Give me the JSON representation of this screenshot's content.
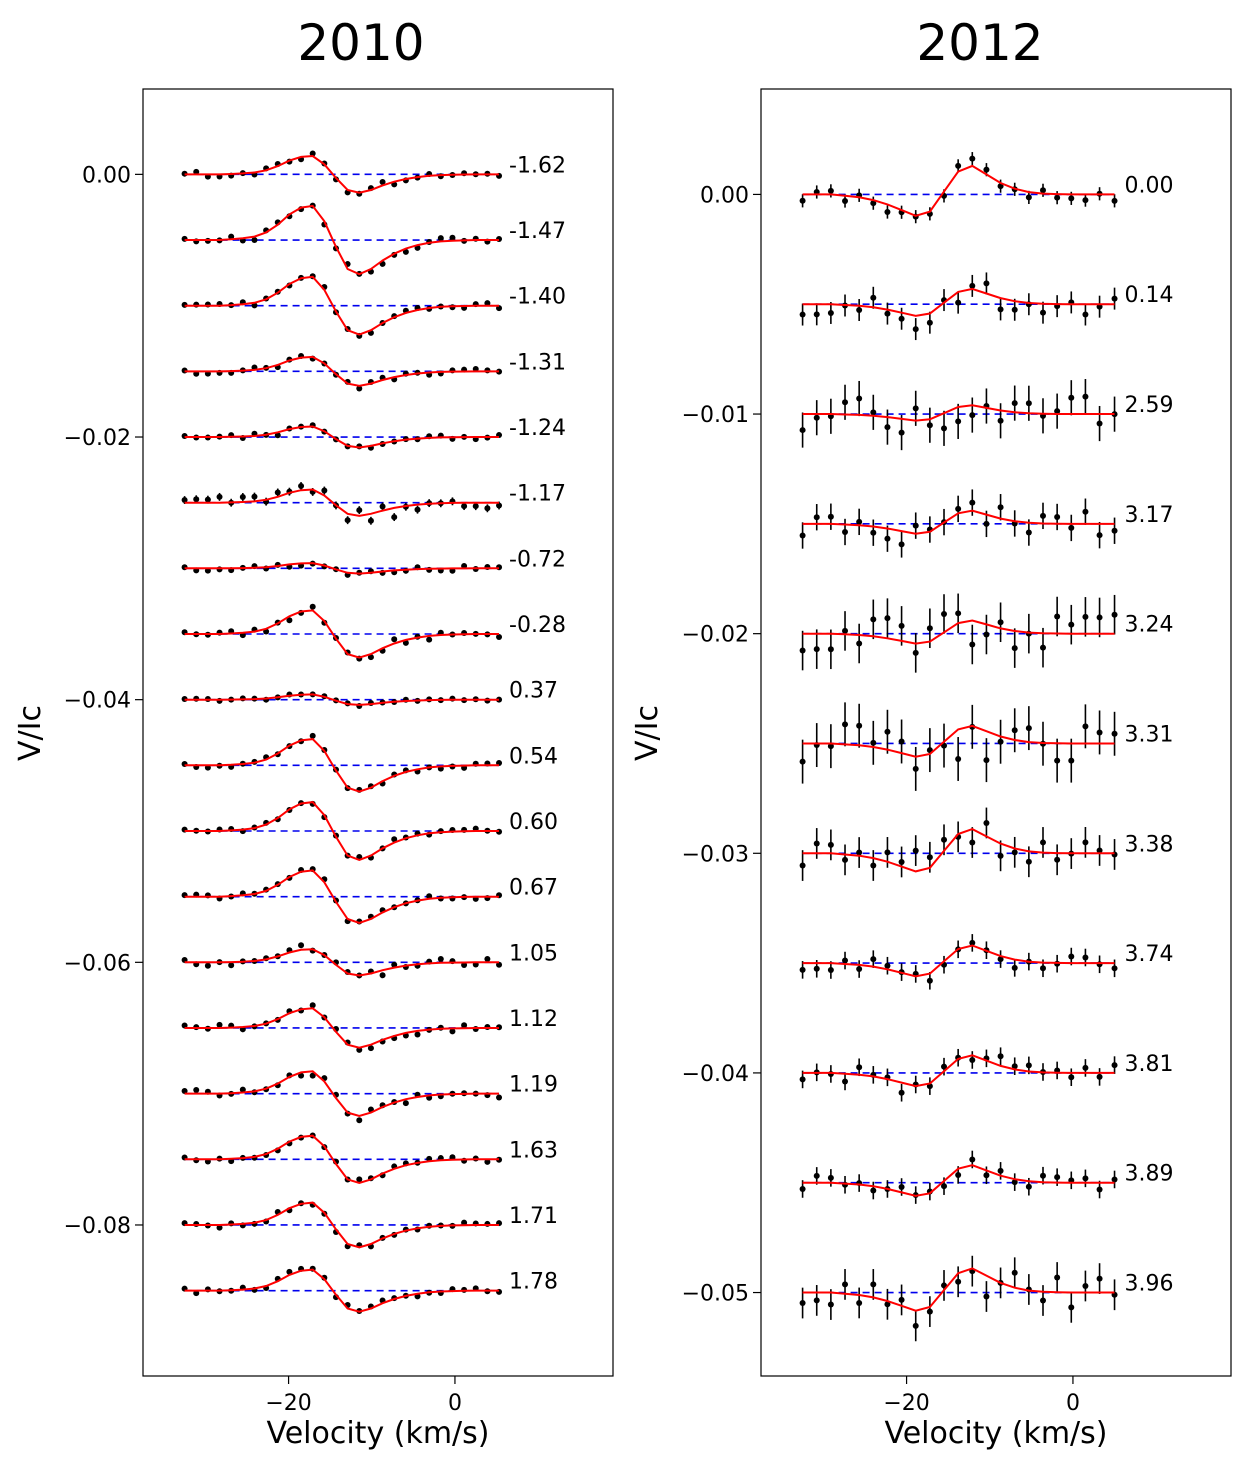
{
  "chart_data": [
    {
      "type": "line",
      "panel_title": "2010",
      "xlabel": "Velocity (km/s)",
      "ylabel": "V/Ic",
      "xlim": [
        -37.5,
        19
      ],
      "ylim": [
        -0.0915,
        0.0065
      ],
      "xticks": [
        -20,
        0
      ],
      "xtick_labels": [
        "−20",
        "0"
      ],
      "yticks": [
        0.0,
        -0.02,
        -0.04,
        -0.06,
        -0.08
      ],
      "ytick_labels": [
        "0.00",
        "−0.02",
        "−0.04",
        "−0.06",
        "−0.08"
      ],
      "offset_step": 0.005,
      "velocity": [
        -32.5,
        -31.1,
        -29.7,
        -28.3,
        -26.9,
        -25.5,
        -24.1,
        -22.7,
        -21.3,
        -19.9,
        -18.5,
        -17.1,
        -15.7,
        -14.3,
        -12.9,
        -11.5,
        -10.1,
        -8.7,
        -7.3,
        -5.9,
        -4.5,
        -3.1,
        -1.7,
        -0.3,
        1.1,
        2.5,
        3.9,
        5.3
      ],
      "model_shape": [
        0.0,
        0.0,
        0.0,
        0.0,
        0.02,
        0.05,
        0.1,
        0.22,
        0.45,
        0.75,
        0.95,
        1.0,
        0.55,
        -0.2,
        -0.85,
        -1.0,
        -0.85,
        -0.6,
        -0.4,
        -0.25,
        -0.15,
        -0.08,
        -0.04,
        -0.02,
        -0.01,
        0.0,
        0.0,
        0.0
      ],
      "series": [
        {
          "phase_label": "-1.62",
          "offset": 0.0,
          "model_amp": 0.0014,
          "noise": 0.0002
        },
        {
          "phase_label": "-1.47",
          "offset": -0.005,
          "model_amp": 0.0026,
          "noise": 0.0003
        },
        {
          "phase_label": "-1.40",
          "offset": -0.01,
          "model_amp": 0.0022,
          "noise": 0.0002
        },
        {
          "phase_label": "-1.31",
          "offset": -0.015,
          "model_amp": 0.0011,
          "noise": 0.0002
        },
        {
          "phase_label": "-1.24",
          "offset": -0.02,
          "model_amp": 0.0008,
          "noise": 0.0002
        },
        {
          "phase_label": "-1.17",
          "offset": -0.025,
          "model_amp": 0.001,
          "noise": 0.0005
        },
        {
          "phase_label": "-0.72",
          "offset": -0.03,
          "model_amp": 0.0004,
          "noise": 0.0002
        },
        {
          "phase_label": "-0.28",
          "offset": -0.035,
          "model_amp": 0.0018,
          "noise": 0.0003
        },
        {
          "phase_label": "0.37",
          "offset": -0.04,
          "model_amp": 0.0004,
          "noise": 0.0001
        },
        {
          "phase_label": "0.54",
          "offset": -0.045,
          "model_amp": 0.002,
          "noise": 0.0002
        },
        {
          "phase_label": "0.60",
          "offset": -0.05,
          "model_amp": 0.0022,
          "noise": 0.0002
        },
        {
          "phase_label": "0.67",
          "offset": -0.055,
          "model_amp": 0.002,
          "noise": 0.0002
        },
        {
          "phase_label": "1.05",
          "offset": -0.06,
          "model_amp": 0.001,
          "noise": 0.0003
        },
        {
          "phase_label": "1.12",
          "offset": -0.065,
          "model_amp": 0.0015,
          "noise": 0.0003
        },
        {
          "phase_label": "1.19",
          "offset": -0.07,
          "model_amp": 0.0017,
          "noise": 0.0003
        },
        {
          "phase_label": "1.63",
          "offset": -0.075,
          "model_amp": 0.0018,
          "noise": 0.0002
        },
        {
          "phase_label": "1.71",
          "offset": -0.08,
          "model_amp": 0.0017,
          "noise": 0.0002
        },
        {
          "phase_label": "1.78",
          "offset": -0.085,
          "model_amp": 0.0016,
          "noise": 0.0002
        }
      ]
    },
    {
      "type": "line",
      "panel_title": "2012",
      "xlabel": "Velocity (km/s)",
      "ylabel": "V/Ic",
      "xlim": [
        -37.5,
        19
      ],
      "ylim": [
        -0.0538,
        0.0048
      ],
      "xticks": [
        -20,
        0
      ],
      "xtick_labels": [
        "−20",
        "0"
      ],
      "yticks": [
        0.0,
        -0.01,
        -0.02,
        -0.03,
        -0.04,
        -0.05
      ],
      "ytick_labels": [
        "0.00",
        "−0.01",
        "−0.02",
        "−0.03",
        "−0.04",
        "−0.05"
      ],
      "offset_step": 0.005,
      "velocity": [
        -32.5,
        -30.8,
        -29.1,
        -27.4,
        -25.7,
        -24.0,
        -22.3,
        -20.6,
        -18.9,
        -17.2,
        -15.5,
        -13.8,
        -12.1,
        -10.4,
        -8.7,
        -7.0,
        -5.3,
        -3.6,
        -1.9,
        -0.2,
        1.5,
        3.2,
        5.0
      ],
      "model_shape": [
        0.0,
        0.0,
        0.0,
        -0.05,
        -0.1,
        -0.2,
        -0.35,
        -0.55,
        -0.75,
        -0.6,
        0.1,
        0.8,
        1.0,
        0.7,
        0.4,
        0.2,
        0.08,
        0.03,
        0.01,
        0.0,
        0.0,
        0.0,
        0.0
      ],
      "series": [
        {
          "phase_label": "0.00",
          "offset": 0.0,
          "model_amp": 0.0013,
          "noise": 0.0003
        },
        {
          "phase_label": "0.14",
          "offset": -0.005,
          "model_amp": 0.0007,
          "noise": 0.0005
        },
        {
          "phase_label": "2.59",
          "offset": -0.01,
          "model_amp": 0.0004,
          "noise": 0.0008
        },
        {
          "phase_label": "3.17",
          "offset": -0.015,
          "model_amp": 0.0006,
          "noise": 0.0006
        },
        {
          "phase_label": "3.24",
          "offset": -0.02,
          "model_amp": 0.0006,
          "noise": 0.0009
        },
        {
          "phase_label": "3.31",
          "offset": -0.025,
          "model_amp": 0.0008,
          "noise": 0.001
        },
        {
          "phase_label": "3.38",
          "offset": -0.03,
          "model_amp": 0.0011,
          "noise": 0.0007
        },
        {
          "phase_label": "3.74",
          "offset": -0.035,
          "model_amp": 0.0008,
          "noise": 0.0004
        },
        {
          "phase_label": "3.81",
          "offset": -0.04,
          "model_amp": 0.0008,
          "noise": 0.0004
        },
        {
          "phase_label": "3.89",
          "offset": -0.045,
          "model_amp": 0.0008,
          "noise": 0.0004
        },
        {
          "phase_label": "3.96",
          "offset": -0.05,
          "model_amp": 0.0011,
          "noise": 0.0007
        }
      ]
    }
  ]
}
